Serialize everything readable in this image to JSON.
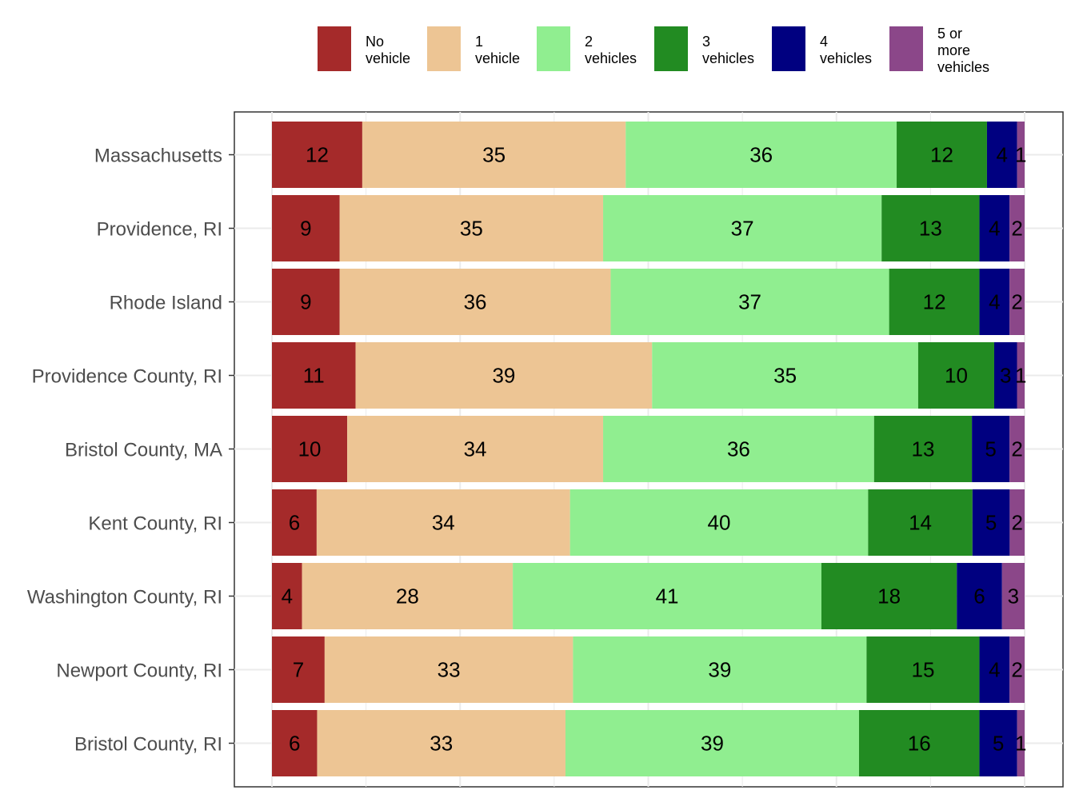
{
  "chart_data": {
    "type": "bar",
    "orientation": "horizontal",
    "stacked": true,
    "categories": [
      "Massachusetts",
      "Providence, RI",
      "Rhode Island",
      "Providence County, RI",
      "Bristol County, MA",
      "Kent County, RI",
      "Washington County, RI",
      "Newport County, RI",
      "Bristol County, RI"
    ],
    "series": [
      {
        "name": [
          "No",
          "vehicle"
        ],
        "color": "#a52a2a",
        "values": [
          12,
          9,
          9,
          11,
          10,
          6,
          4,
          7,
          6
        ]
      },
      {
        "name": [
          "1",
          "vehicle"
        ],
        "color": "#edc594",
        "values": [
          35,
          35,
          36,
          39,
          34,
          34,
          28,
          33,
          33
        ]
      },
      {
        "name": [
          "2",
          "vehicles"
        ],
        "color": "#90ee90",
        "values": [
          36,
          37,
          37,
          35,
          36,
          40,
          41,
          39,
          39
        ]
      },
      {
        "name": [
          "3",
          "vehicles"
        ],
        "color": "#228b22",
        "values": [
          12,
          13,
          12,
          10,
          13,
          14,
          18,
          15,
          16
        ]
      },
      {
        "name": [
          "4",
          "vehicles"
        ],
        "color": "#000080",
        "values": [
          4,
          4,
          4,
          3,
          5,
          5,
          6,
          4,
          5
        ]
      },
      {
        "name": [
          "5 or",
          "more",
          "vehicles"
        ],
        "color": "#8b4789",
        "values": [
          1,
          2,
          2,
          1,
          2,
          2,
          3,
          2,
          1
        ]
      }
    ],
    "data_labels": true,
    "grid": true,
    "legend_position": "top"
  }
}
